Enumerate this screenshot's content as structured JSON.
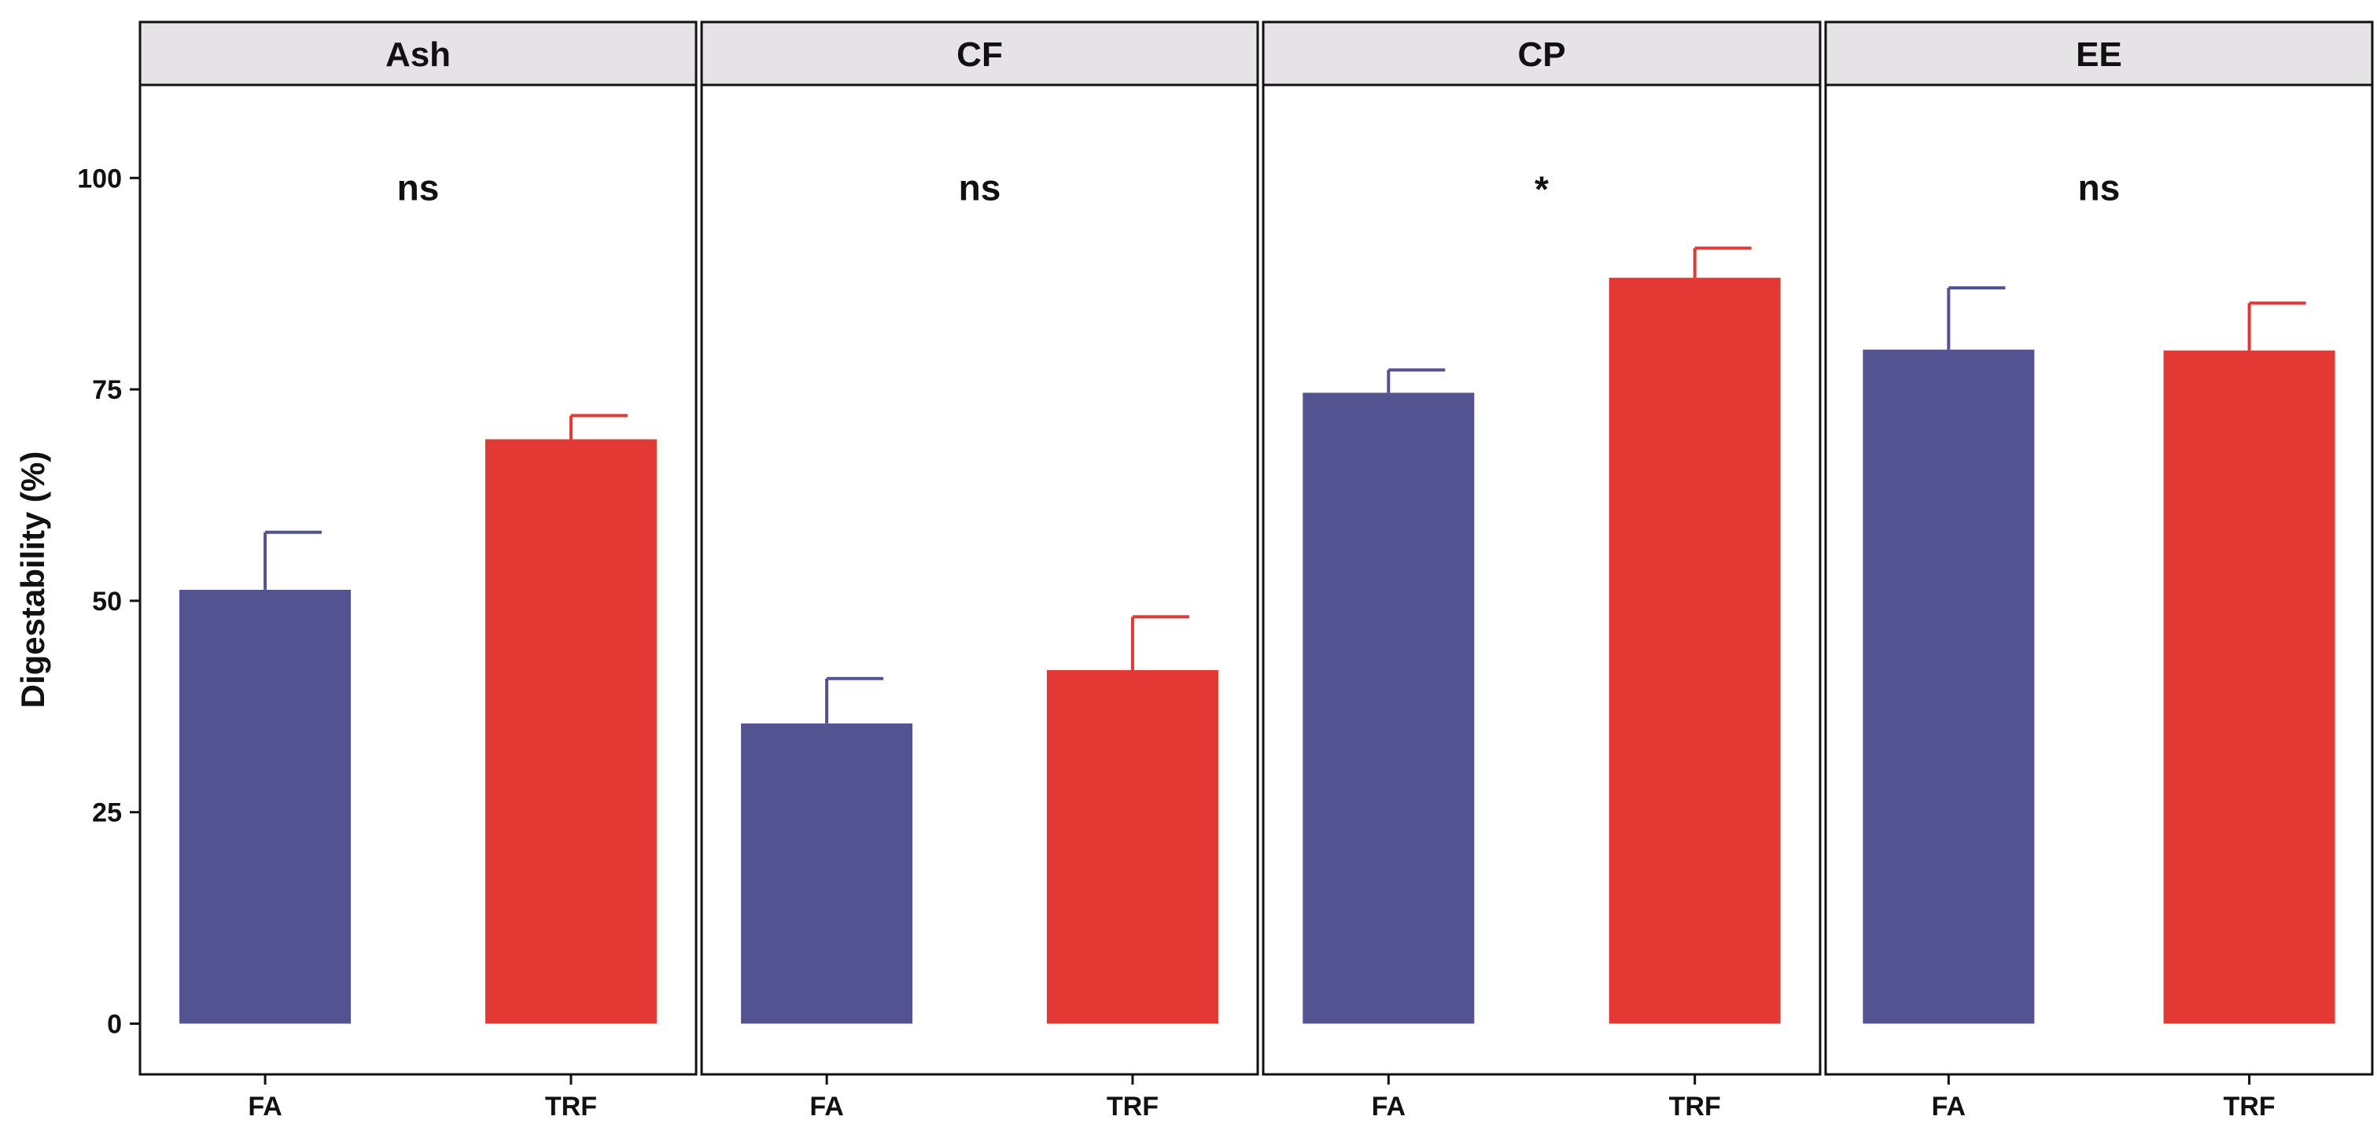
{
  "chart_data": {
    "type": "bar",
    "ylabel": "Digestability (%)",
    "ylim": [
      -6,
      111
    ],
    "yticks": [
      0,
      25,
      50,
      75,
      100
    ],
    "groups": [
      "FA",
      "TRF"
    ],
    "colors": {
      "FA": "#535391",
      "TRF": "#E33833"
    },
    "panels": [
      {
        "label": "Ash",
        "significance": "ns",
        "values": [
          51.3,
          69.1
        ],
        "errors": [
          6.8,
          2.8
        ]
      },
      {
        "label": "CF",
        "significance": "ns",
        "values": [
          35.5,
          41.8
        ],
        "errors": [
          5.3,
          6.3
        ]
      },
      {
        "label": "CP",
        "significance": "*",
        "values": [
          74.6,
          88.2
        ],
        "errors": [
          2.7,
          3.5
        ]
      },
      {
        "label": "EE",
        "significance": "ns",
        "values": [
          79.7,
          79.6
        ],
        "errors": [
          7.3,
          5.6
        ]
      }
    ]
  }
}
